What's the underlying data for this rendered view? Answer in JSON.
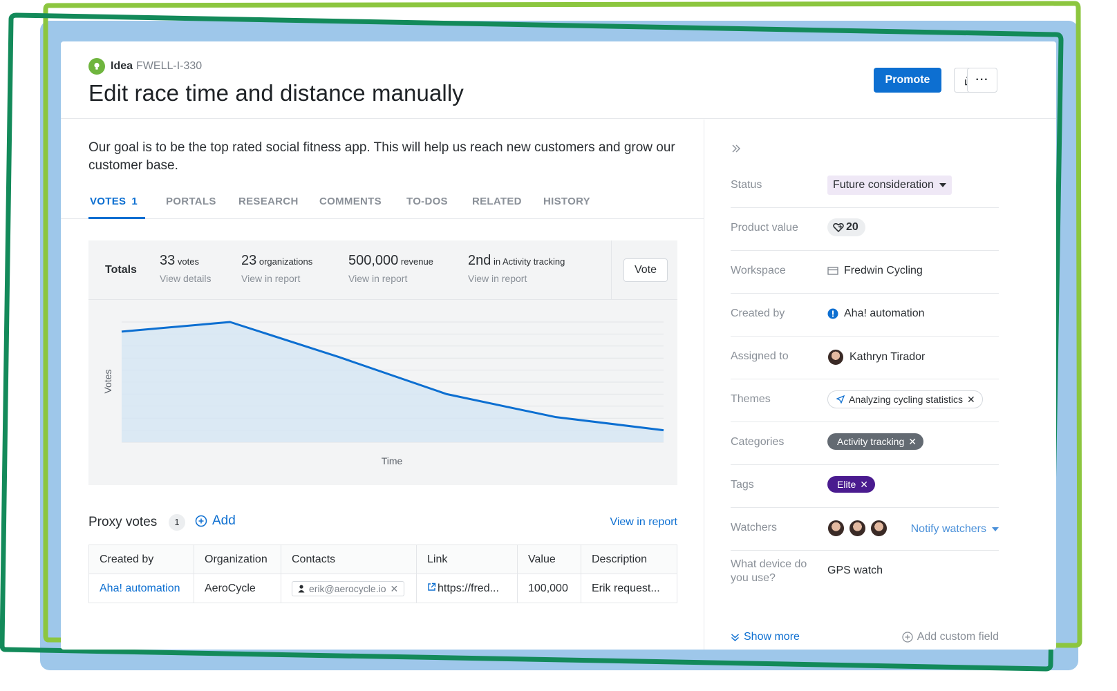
{
  "record": {
    "type": "Idea",
    "id": "FWELL-I-330",
    "title": "Edit race time and distance manually"
  },
  "actions": {
    "promote_label": "Promote",
    "share_icon": "share-icon",
    "more_label": "···"
  },
  "description": "Our goal is to be the top rated social fitness app. This will help us reach new customers and grow our customer base.",
  "tabs": [
    {
      "label": "VOTES",
      "count": "1"
    },
    {
      "label": "PORTALS"
    },
    {
      "label": "RESEARCH"
    },
    {
      "label": "COMMENTS"
    },
    {
      "label": "TO-DOS"
    },
    {
      "label": "RELATED"
    },
    {
      "label": "HISTORY"
    }
  ],
  "totals": {
    "label": "Totals",
    "stats": [
      {
        "value": "33",
        "unit": "votes",
        "link": "View details"
      },
      {
        "value": "23",
        "unit": "organizations",
        "link": "View in report"
      },
      {
        "value": "500,000",
        "unit": "revenue",
        "link": "View in report"
      },
      {
        "value": "2nd",
        "unit": "in Activity tracking",
        "link": "View in report"
      }
    ],
    "vote_button": "Vote"
  },
  "chart_data": {
    "type": "area",
    "title": "",
    "xlabel": "Time",
    "ylabel": "Votes",
    "x": [
      0,
      1,
      2,
      3,
      4,
      5
    ],
    "values": [
      9.2,
      10.0,
      7.1,
      4.0,
      2.1,
      1.0
    ],
    "ylim": [
      0,
      10
    ],
    "grid": true,
    "line_color": "#0d6fd1",
    "fill_color": "#d6e6f3"
  },
  "proxy": {
    "title": "Proxy votes",
    "count": "1",
    "add_label": "Add",
    "view_report": "View in report",
    "columns": [
      "Created by",
      "Organization",
      "Contacts",
      "Link",
      "Value",
      "Description"
    ],
    "row": {
      "created_by": "Aha! automation",
      "organization": "AeroCycle",
      "contact": "erik@aerocycle.io",
      "link": "https://fred...",
      "value": "100,000",
      "description": "Erik request..."
    }
  },
  "sidebar": {
    "fields": [
      {
        "label": "Status",
        "value": "Future consideration"
      },
      {
        "label": "Product value",
        "value": "20"
      },
      {
        "label": "Workspace",
        "value": "Fredwin Cycling"
      },
      {
        "label": "Created by",
        "value": "Aha! automation"
      },
      {
        "label": "Assigned to",
        "value": "Kathryn Tirador"
      },
      {
        "label": "Themes",
        "value": "Analyzing cycling statistics"
      },
      {
        "label": "Categories",
        "value": "Activity tracking"
      },
      {
        "label": "Tags",
        "value": "Elite"
      },
      {
        "label": "Watchers",
        "value": "Notify watchers"
      },
      {
        "label": "What device do you use?",
        "value": "GPS watch"
      }
    ],
    "show_more": "Show more",
    "add_custom_field": "Add custom field"
  },
  "colors": {
    "accent": "#0d6fd1",
    "frame_blue": "#9ec7ea",
    "frame_lime": "#8cc63f",
    "frame_green": "#138a5a",
    "tag_purple": "#4a1b8f",
    "category_gray": "#636a72"
  }
}
